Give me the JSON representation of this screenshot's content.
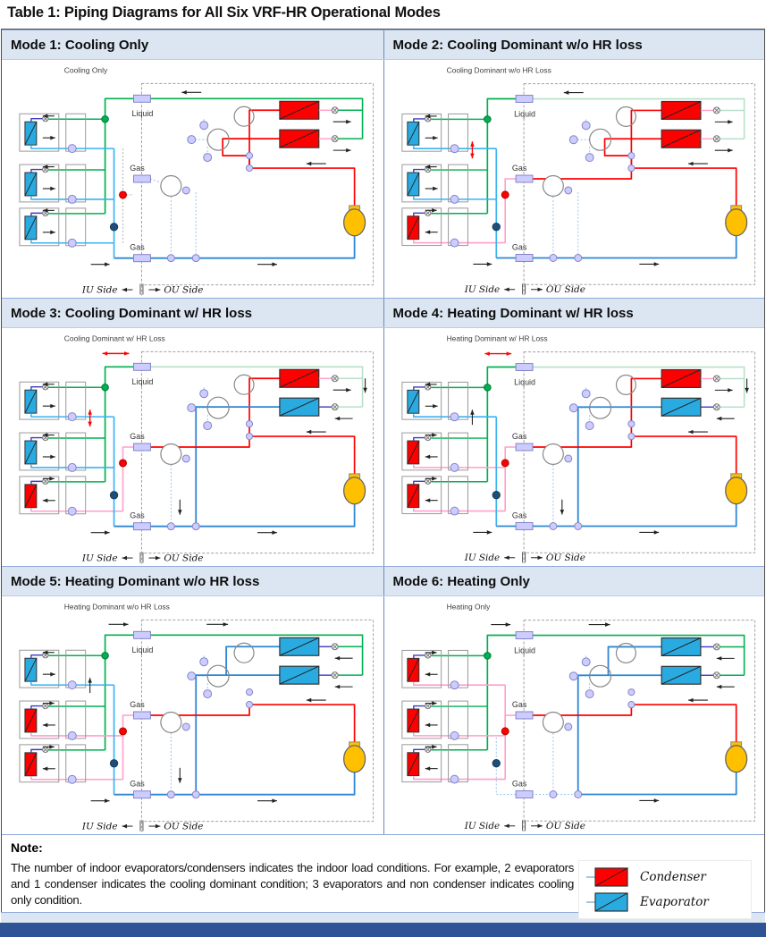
{
  "title": "Table 1: Piping Diagrams for All Six VRF-HR Operational Modes",
  "labels": {
    "liquid": "Liquid",
    "gas_upper": "Gas",
    "gas_lower": "Gas",
    "iu_side": "IU Side",
    "ou_side": "OU Side",
    "left_arrow": "←",
    "right_arrow": "→",
    "separator": "‖"
  },
  "colors": {
    "header_bg": "#dce6f2",
    "header_border": "#8ea9db",
    "divider": "#6b8cba",
    "bottom_bar": "#2f5496",
    "strip": "#dce6f2",
    "condenser_red": "#ff0000",
    "evaporator_blue": "#29abe2",
    "green": "#00b050",
    "faded_green": "#b7e0c8",
    "light_blue": "#39b4f2",
    "trunk_blue": "#2e86d4",
    "pink": "#ff9ecb",
    "lavender": "#ccccff",
    "lavender_stroke": "#8484c8",
    "compressor_yellow": "#ffc000",
    "dark_blue_dot": "#1f4e79",
    "red_dot": "#ff0000",
    "indigo": "#3b3bc4",
    "dash_gray": "#a0a0a0",
    "dotted_blue": "#9dc3e6",
    "box_gray": "#999999"
  },
  "modes": [
    {
      "header": "Mode 1: Cooling Only",
      "diagram_label": "Cooling Only",
      "indoor_units": [
        "evaporator",
        "evaporator",
        "evaporator"
      ],
      "outdoor_hx": [
        "condenser",
        "condenser"
      ],
      "upper_gas_active": false,
      "top_arrow": "black-left",
      "mid_arrow": null,
      "hx_arrows": [
        "right",
        "right"
      ],
      "right_green": "bright",
      "lower_gas_iu": "solid",
      "down_arrow_mid": false,
      "right_down_arrow": false
    },
    {
      "header": "Mode 2: Cooling Dominant w/o HR loss",
      "diagram_label": "Cooling Dominant w/o HR Loss",
      "indoor_units": [
        "evaporator",
        "evaporator",
        "condenser"
      ],
      "outdoor_hx": [
        "condenser",
        "condenser"
      ],
      "upper_gas_active": true,
      "top_arrow": "black-left",
      "mid_arrow": "red-double",
      "hx_arrows": [
        "right",
        "right"
      ],
      "right_green": "faded",
      "lower_gas_iu": "solid",
      "down_arrow_mid": false,
      "right_down_arrow": false
    },
    {
      "header": "Mode 3: Cooling Dominant w/ HR loss",
      "diagram_label": "Cooling Dominant w/ HR Loss",
      "indoor_units": [
        "evaporator",
        "evaporator",
        "condenser"
      ],
      "outdoor_hx": [
        "condenser",
        "evaporator"
      ],
      "upper_gas_active": true,
      "top_arrow": "red-double",
      "mid_arrow": "red-double",
      "hx_arrows": [
        "right",
        "left"
      ],
      "right_green": "faded",
      "lower_gas_iu": "solid",
      "down_arrow_mid": true,
      "right_down_arrow": true
    },
    {
      "header": "Mode 4: Heating Dominant w/ HR loss",
      "diagram_label": "Heating Dominant w/ HR Loss",
      "indoor_units": [
        "evaporator",
        "condenser",
        "condenser"
      ],
      "outdoor_hx": [
        "condenser",
        "evaporator"
      ],
      "upper_gas_active": true,
      "top_arrow": "red-double",
      "mid_arrow": "black-up",
      "hx_arrows": [
        "right",
        "left"
      ],
      "right_green": "faded",
      "lower_gas_iu": "solid",
      "down_arrow_mid": true,
      "right_down_arrow": true
    },
    {
      "header": "Mode 5: Heating Dominant w/o HR loss",
      "diagram_label": "Heating Dominant w/o HR Loss",
      "indoor_units": [
        "evaporator",
        "condenser",
        "condenser"
      ],
      "outdoor_hx": [
        "evaporator",
        "evaporator"
      ],
      "upper_gas_active": true,
      "top_arrow": "black-right",
      "mid_arrow": "black-up",
      "hx_arrows": [
        "left",
        "left"
      ],
      "right_green": "bright",
      "lower_gas_iu": "solid",
      "down_arrow_mid": true,
      "right_down_arrow": false
    },
    {
      "header": "Mode 6: Heating Only",
      "diagram_label": "Heating Only",
      "indoor_units": [
        "condenser",
        "condenser",
        "condenser"
      ],
      "outdoor_hx": [
        "evaporator",
        "evaporator"
      ],
      "upper_gas_active": true,
      "top_arrow": "black-right",
      "mid_arrow": null,
      "hx_arrows": [
        "left",
        "left"
      ],
      "right_green": "bright",
      "lower_gas_iu": "dotted",
      "down_arrow_mid": false,
      "right_down_arrow": false
    }
  ],
  "note": {
    "heading": "Note:",
    "text": "The number of indoor evaporators/condensers indicates the indoor load conditions. For example, 2 evaporators and 1 condenser indicates the cooling dominant condition; 3 evaporators and non condenser indicates cooling only condition."
  },
  "legend": [
    {
      "label": "Condenser",
      "type": "condenser"
    },
    {
      "label": "Evaporator",
      "type": "evaporator"
    }
  ]
}
